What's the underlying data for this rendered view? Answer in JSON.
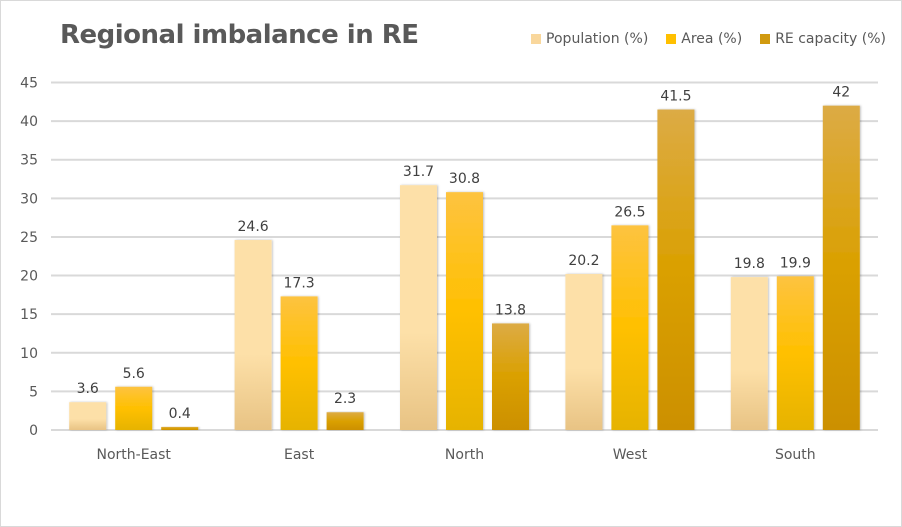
{
  "chart_data": {
    "type": "bar",
    "title": "Regional imbalance in RE",
    "xlabel": "",
    "ylabel": "",
    "ylim": [
      0,
      45
    ],
    "yticks": [
      0,
      5,
      10,
      15,
      20,
      25,
      30,
      35,
      40,
      45
    ],
    "grid": true,
    "legend_position": "top-right",
    "categories": [
      "North-East",
      "East",
      "North",
      "West",
      "South"
    ],
    "series": [
      {
        "name": "Population (%)",
        "values": [
          3.6,
          24.6,
          31.7,
          20.2,
          19.8
        ],
        "color_top": "#fde0a8",
        "color_bottom": "#e8c384",
        "color": "#f9d79c"
      },
      {
        "name": "Area (%)",
        "values": [
          5.6,
          17.3,
          30.8,
          26.5,
          19.9
        ],
        "color_top": "#fdc340",
        "color_mid": "#ffc000",
        "color_bottom": "#e6b300",
        "color": "#ffc000"
      },
      {
        "name": "RE capacity (%)",
        "values": [
          0.4,
          2.3,
          13.8,
          41.5,
          42
        ],
        "color_top": "#dcab45",
        "color_mid": "#daa000",
        "color_bottom": "#cc9000",
        "color": "#d19a10"
      }
    ]
  }
}
